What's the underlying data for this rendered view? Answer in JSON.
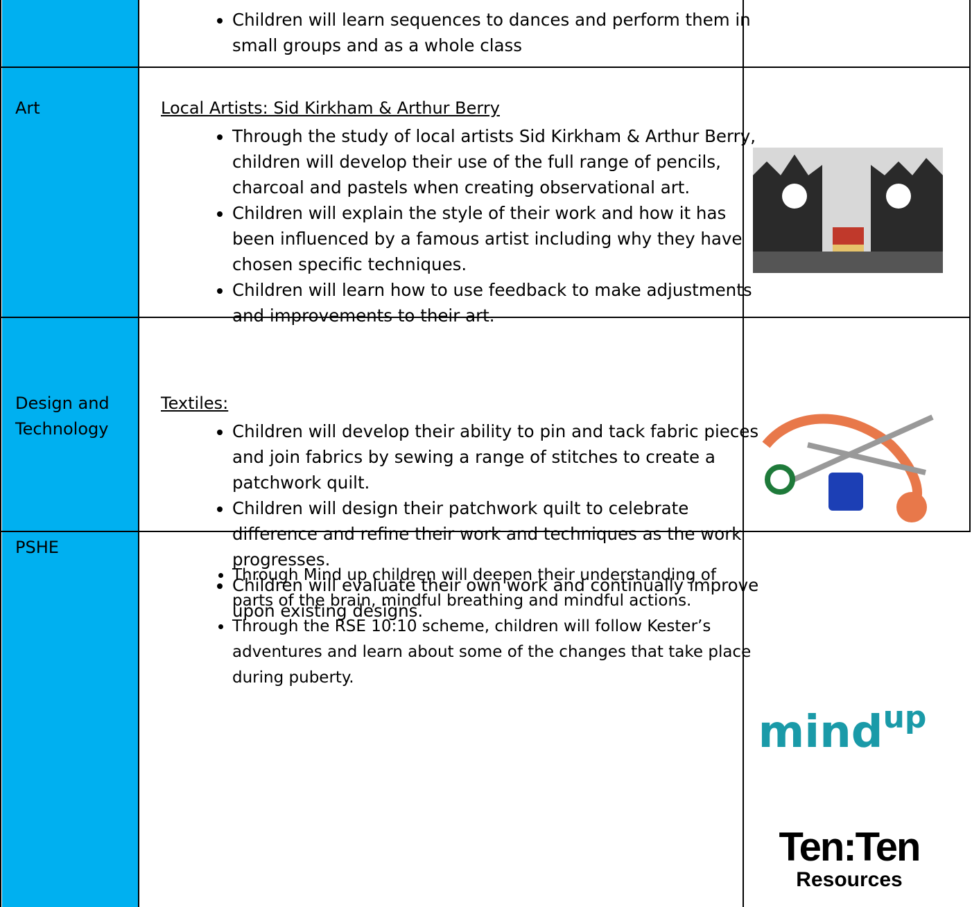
{
  "table": {
    "rows": [
      {
        "subject": "",
        "heading": "",
        "bullets": [
          "Children will learn sequences to dances and perform them in small groups and as a whole class"
        ]
      },
      {
        "subject": "Art",
        "heading": "Local Artists: Sid Kirkham & Arthur Berry",
        "bullets": [
          "Through the study of local artists Sid Kirkham & Arthur Berry, children will develop their use of the full range of pencils, charcoal and pastels when creating observational art.",
          "Children will explain the style of their work and how it has been influenced by a famous artist including why they have chosen specific techniques.",
          "Children will learn how to use feedback to make adjustments and improvements to their art."
        ]
      },
      {
        "subject": "Design and Technology",
        "heading": "Textiles:",
        "bullets": [
          "Children will develop their ability to pin and tack fabric pieces and join fabrics by sewing a range of stitches to create a patchwork quilt.",
          "Children will design their patchwork quilt to celebrate difference and refine their work and techniques as the work progresses.",
          "Children will evaluate their own work and continually improve upon existing designs."
        ]
      },
      {
        "subject": "PSHE",
        "heading": "",
        "bullets": [
          "Through Mind up children will deepen their understanding of parts of the brain, mindful breathing and mindful actions.",
          "Through the RSE 10:10 scheme, children will follow Kester’s adventures and learn about some of the changes that take place during puberty."
        ]
      }
    ]
  },
  "logos": {
    "mindup_main": "mind",
    "mindup_sup": "up",
    "tenten": "Ten:Ten",
    "tenten_sub": "Resources"
  }
}
